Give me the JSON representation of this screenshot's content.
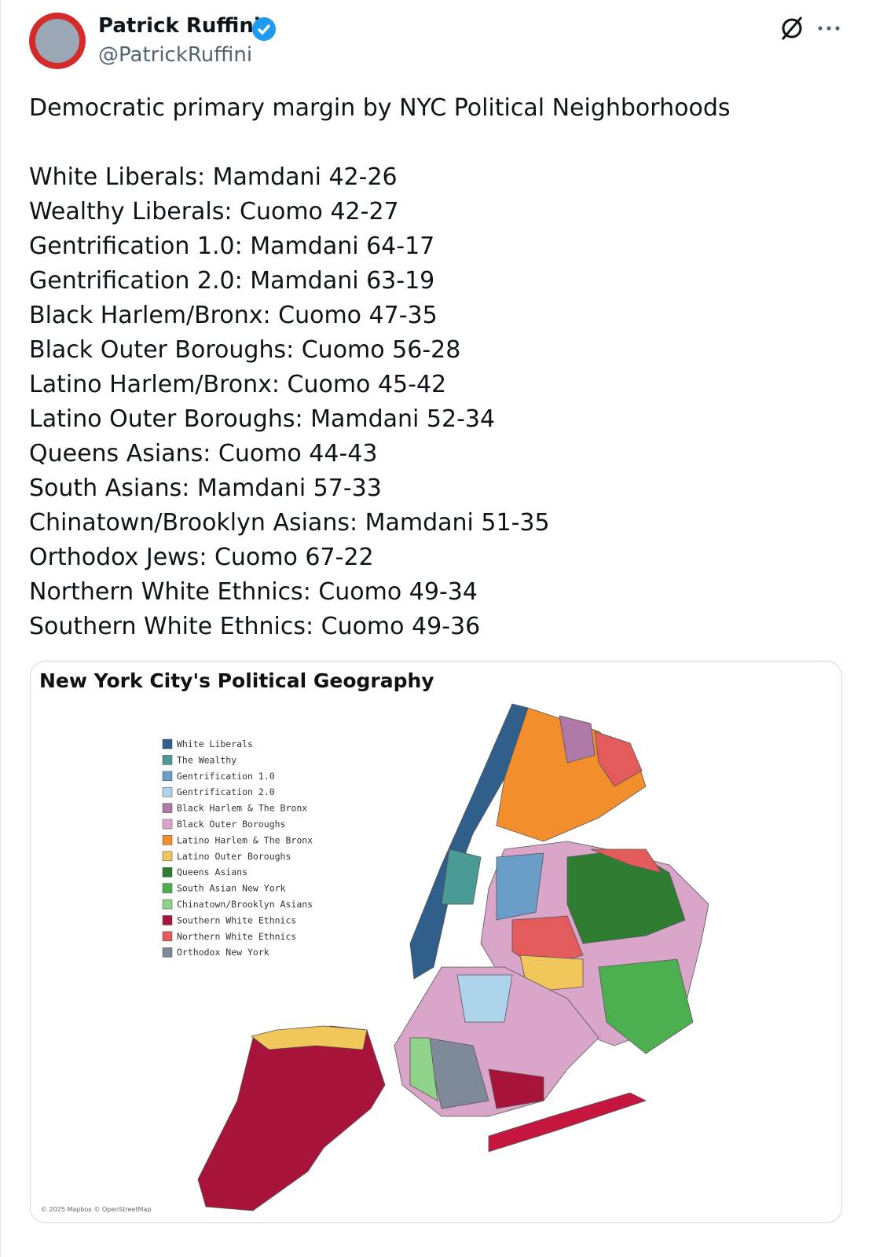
{
  "header": {
    "name": "Patrick Ruffini",
    "handle": "@PatrickRuffini"
  },
  "tweet": {
    "intro": "Democratic primary margin by NYC Political Neighborhoods",
    "lines": [
      "White Liberals: Mamdani 42-26",
      "Wealthy Liberals: Cuomo 42-27",
      "Gentrification 1.0: Mamdani 64-17",
      "Gentrification 2.0: Mamdani 63-19",
      "Black Harlem/Bronx: Cuomo 47-35",
      "Black Outer Boroughs: Cuomo 56-28",
      "Latino Harlem/Bronx: Cuomo 45-42",
      "Latino Outer Boroughs: Mamdani 52-34",
      "Queens Asians: Cuomo 44-43",
      "South Asians: Mamdani 57-33",
      "Chinatown/Brooklyn Asians: Mamdani 51-35",
      "Orthodox Jews: Cuomo 67-22",
      "Northern White Ethnics: Cuomo 49-34",
      "Southern White Ethnics: Cuomo 49-36"
    ]
  },
  "map": {
    "title": "New York City's Political Geography",
    "legend": [
      {
        "label": "White Liberals",
        "color": "#2f5f8a"
      },
      {
        "label": "The Wealthy",
        "color": "#4a9a96"
      },
      {
        "label": "Gentrification 1.0",
        "color": "#6b9dc9"
      },
      {
        "label": "Gentrification 2.0",
        "color": "#aed4ec"
      },
      {
        "label": "Black Harlem & The Bronx",
        "color": "#b07aa8"
      },
      {
        "label": "Black Outer Boroughs",
        "color": "#d9a6c9"
      },
      {
        "label": "Latino Harlem & The Bronx",
        "color": "#f28e2b"
      },
      {
        "label": "Latino Outer Boroughs",
        "color": "#f1c75b"
      },
      {
        "label": "Queens Asians",
        "color": "#2e7d32"
      },
      {
        "label": "South Asian New York",
        "color": "#4caf50"
      },
      {
        "label": "Chinatown/Brooklyn Asians",
        "color": "#8fd48a"
      },
      {
        "label": "Southern White Ethnics",
        "color": "#a8133a"
      },
      {
        "label": "Northern White Ethnics",
        "color": "#e35b5b"
      },
      {
        "label": "Orthodox New York",
        "color": "#7f8a99"
      }
    ],
    "credit": "© 2025 Mapbox © OpenStreetMap"
  }
}
